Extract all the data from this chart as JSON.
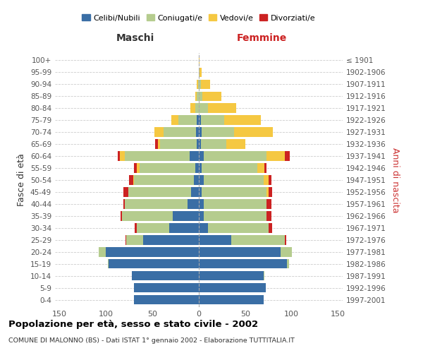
{
  "age_groups": [
    "0-4",
    "5-9",
    "10-14",
    "15-19",
    "20-24",
    "25-29",
    "30-34",
    "35-39",
    "40-44",
    "45-49",
    "50-54",
    "55-59",
    "60-64",
    "65-69",
    "70-74",
    "75-79",
    "80-84",
    "85-89",
    "90-94",
    "95-99",
    "100+"
  ],
  "birth_years": [
    "1997-2001",
    "1992-1996",
    "1987-1991",
    "1982-1986",
    "1977-1981",
    "1972-1976",
    "1967-1971",
    "1962-1966",
    "1957-1961",
    "1952-1956",
    "1947-1951",
    "1942-1946",
    "1937-1941",
    "1932-1936",
    "1927-1931",
    "1922-1926",
    "1917-1921",
    "1912-1916",
    "1907-1911",
    "1902-1906",
    "≤ 1901"
  ],
  "males": {
    "celibi": [
      70,
      70,
      72,
      97,
      100,
      60,
      32,
      28,
      12,
      8,
      5,
      4,
      10,
      2,
      3,
      2,
      0,
      0,
      0,
      0,
      0
    ],
    "coniugati": [
      0,
      0,
      0,
      1,
      8,
      18,
      35,
      55,
      68,
      68,
      65,
      60,
      70,
      40,
      35,
      20,
      4,
      2,
      1,
      0,
      0
    ],
    "vedovi": [
      0,
      0,
      0,
      0,
      0,
      0,
      0,
      0,
      0,
      0,
      1,
      3,
      5,
      2,
      10,
      8,
      5,
      2,
      1,
      0,
      0
    ],
    "divorziati": [
      0,
      0,
      0,
      0,
      0,
      1,
      2,
      1,
      1,
      5,
      4,
      3,
      2,
      3,
      0,
      0,
      0,
      0,
      0,
      0,
      0
    ]
  },
  "females": {
    "nubili": [
      70,
      72,
      70,
      95,
      88,
      35,
      10,
      5,
      5,
      3,
      5,
      3,
      5,
      2,
      3,
      2,
      0,
      0,
      0,
      0,
      0
    ],
    "coniugate": [
      0,
      0,
      1,
      2,
      12,
      58,
      65,
      68,
      68,
      70,
      65,
      60,
      68,
      28,
      35,
      25,
      10,
      4,
      2,
      1,
      0
    ],
    "vedove": [
      0,
      0,
      0,
      0,
      0,
      0,
      0,
      0,
      0,
      2,
      5,
      8,
      20,
      20,
      42,
      40,
      30,
      20,
      10,
      2,
      1
    ],
    "divorziate": [
      0,
      0,
      0,
      0,
      0,
      1,
      4,
      5,
      5,
      4,
      3,
      2,
      5,
      0,
      0,
      0,
      0,
      0,
      0,
      0,
      0
    ]
  },
  "colors": {
    "celibi": "#3a6ea5",
    "coniugati": "#b5cc8e",
    "vedovi": "#f5c842",
    "divorziati": "#cc2222"
  },
  "title": "Popolazione per età, sesso e stato civile - 2002",
  "subtitle": "COMUNE DI MALONNO (BS) - Dati ISTAT 1° gennaio 2002 - Elaborazione TUTTITALIA.IT",
  "xlabel_left": "Maschi",
  "xlabel_right": "Femmine",
  "ylabel_left": "Fasce di età",
  "ylabel_right": "Anni di nascita",
  "xlim": 155,
  "bg_color": "#ffffff",
  "grid_color": "#cccccc",
  "legend_labels": [
    "Celibi/Nubili",
    "Coniugati/e",
    "Vedovi/e",
    "Divorziati/e"
  ]
}
